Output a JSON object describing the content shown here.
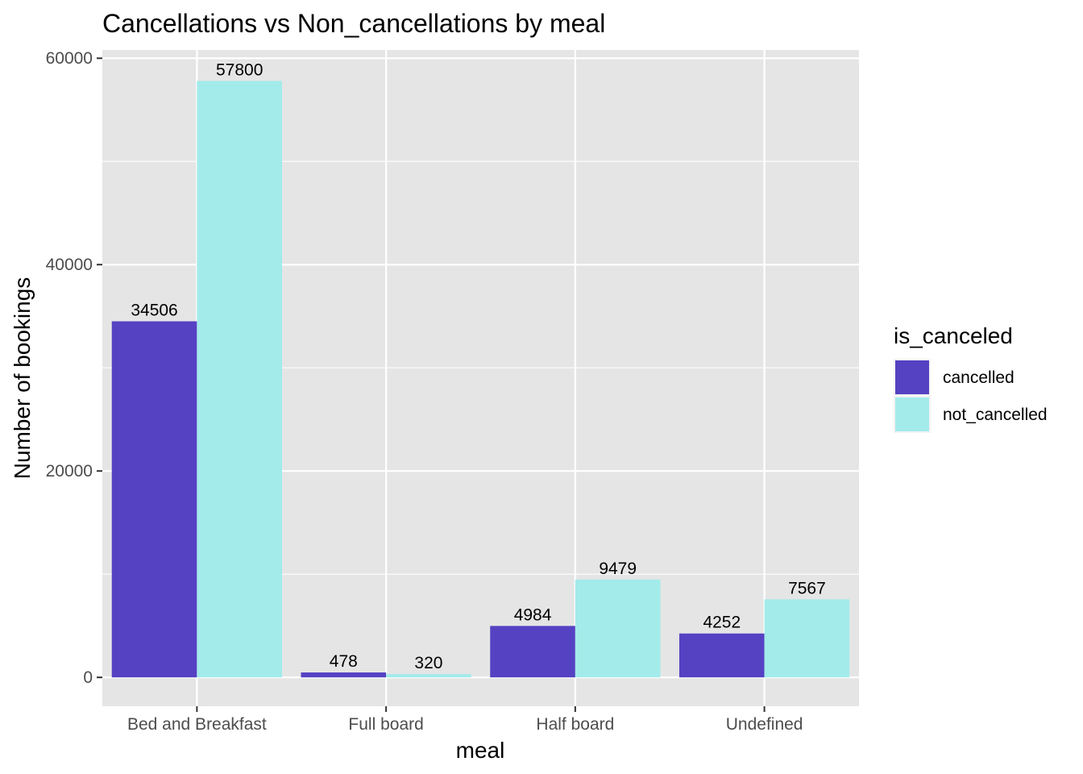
{
  "chart_data": {
    "type": "bar",
    "title": "Cancellations vs Non_cancellations by meal",
    "xlabel": "meal",
    "ylabel": "Number of bookings",
    "categories": [
      "Bed and Breakfast",
      "Full board",
      "Half board",
      "Undefined"
    ],
    "series": [
      {
        "name": "cancelled",
        "values": [
          34506,
          478,
          4984,
          4252
        ],
        "color": "#5542C2"
      },
      {
        "name": "not_cancelled",
        "values": [
          57800,
          320,
          9479,
          7567
        ],
        "color": "#A3EBEB"
      }
    ],
    "yticks": [
      0,
      20000,
      40000,
      60000
    ],
    "ylim": [
      -2800,
      60800
    ],
    "grid": true,
    "legend": {
      "title": "is_canceled",
      "position": "right"
    },
    "colors": {
      "panel": "#E5E5E5",
      "grid": "#FFFFFF"
    }
  }
}
